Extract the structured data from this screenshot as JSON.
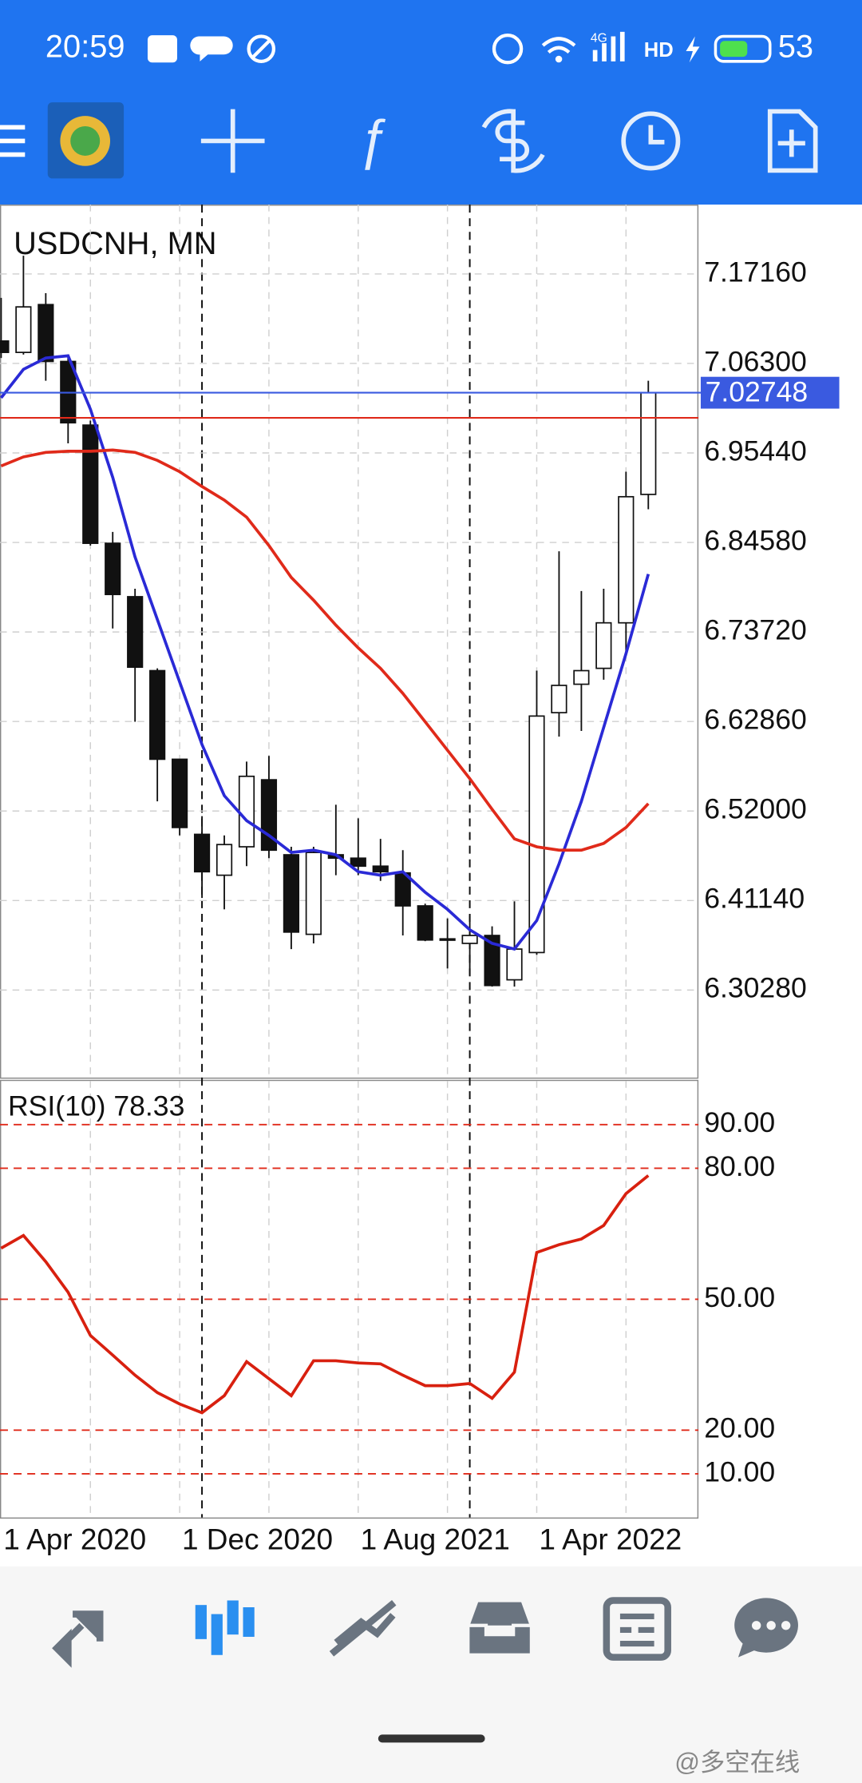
{
  "status_bar": {
    "time": "20:59",
    "network": "4G",
    "hd": "HD",
    "battery": "53"
  },
  "chart_data": [
    {
      "type": "candlestick",
      "title": "USDCNH, MN",
      "categories": [
        "1 Apr 2020",
        null,
        null,
        null,
        null,
        null,
        null,
        null,
        "1 Dec 2020",
        null,
        null,
        null,
        null,
        null,
        null,
        null,
        "1 Aug 2021",
        null,
        null,
        null,
        null,
        null,
        null,
        null,
        "1 Apr 2022",
        null,
        null,
        null,
        null,
        null
      ],
      "open": [
        7.0902,
        7.0764,
        7.1344,
        7.0654,
        6.9882,
        6.8448,
        6.78,
        6.6903,
        6.5828,
        6.4917,
        6.4421,
        6.4766,
        6.5579,
        6.4669,
        6.3704,
        6.4669,
        6.4628,
        6.4531,
        6.4449,
        6.4049,
        6.3649,
        6.3594,
        6.369,
        6.3152,
        6.3483,
        6.6393,
        6.6738,
        6.6931,
        6.7483,
        6.9041
      ],
      "high": [
        7.1426,
        7.1937,
        7.1482,
        7.0737,
        6.9937,
        6.8586,
        6.7896,
        6.6931,
        6.5828,
        6.5138,
        6.4904,
        6.58,
        6.5869,
        6.4766,
        6.4766,
        6.5276,
        6.5111,
        6.4862,
        6.4725,
        6.4076,
        6.3897,
        6.3938,
        6.3801,
        6.4104,
        6.6903,
        6.8351,
        6.7869,
        6.7896,
        6.9317,
        7.042
      ],
      "low": [
        7.0696,
        7.0737,
        7.042,
        6.9661,
        6.842,
        6.7414,
        6.6283,
        6.5317,
        6.4904,
        6.4145,
        6.4007,
        6.4531,
        6.4628,
        6.3525,
        6.3594,
        6.4421,
        6.4421,
        6.4352,
        6.369,
        6.3621,
        6.329,
        6.3207,
        6.307,
        6.307,
        6.3456,
        6.6103,
        6.6172,
        6.6793,
        6.7138,
        6.8861
      ],
      "close": [
        7.0764,
        7.1316,
        7.0654,
        6.991,
        6.8448,
        6.7827,
        6.6945,
        6.5828,
        6.5,
        6.4463,
        6.4793,
        6.5621,
        6.4725,
        6.3731,
        6.4697,
        6.4628,
        6.4531,
        6.4463,
        6.4049,
        6.3635,
        6.3635,
        6.369,
        6.3083,
        6.3525,
        6.6352,
        6.6724,
        6.6903,
        6.7483,
        6.9013,
        7.02748
      ],
      "series": [
        {
          "color": "#2a2ad6",
          "values": [
            7.0213,
            7.0558,
            7.0696,
            7.0723,
            7.0075,
            6.9248,
            6.8282,
            6.7524,
            6.6765,
            6.6007,
            6.5386,
            6.5083,
            6.4904,
            6.4697,
            6.4725,
            6.4669,
            6.4463,
            6.4421,
            6.4463,
            6.4214,
            6.4007,
            6.3759,
            6.3594,
            6.3525,
            6.3871,
            6.4559,
            6.5317,
            6.6214,
            6.711,
            6.8075
          ]
        },
        {
          "color": "#e02a1a",
          "values": [
            6.9386,
            6.9496,
            6.9551,
            6.9565,
            6.9565,
            6.9579,
            6.9551,
            6.9454,
            6.9317,
            6.9137,
            6.8972,
            6.8765,
            6.842,
            6.8034,
            6.7758,
            6.7455,
            6.7179,
            6.6931,
            6.6627,
            6.6283,
            6.5938,
            6.5593,
            6.5221,
            6.4862,
            6.4766,
            6.4725,
            6.4725,
            6.4807,
            6.5,
            6.529
          ]
        }
      ],
      "levels": [
        {
          "value": 7.02748,
          "label": "7.02748",
          "color": "#3a5ae0"
        },
        {
          "value": 6.997,
          "color": "#e02a1a"
        }
      ],
      "ylim": [
        6.1966,
        7.2557
      ],
      "yticks": [
        {
          "value": 7.1716,
          "label": "7.17160"
        },
        {
          "value": 7.063,
          "label": "7.06300"
        },
        {
          "value": 6.9544,
          "label": "6.95440"
        },
        {
          "value": 6.8458,
          "label": "6.84580"
        },
        {
          "value": 6.7372,
          "label": "6.73720"
        },
        {
          "value": 6.6286,
          "label": "6.62860"
        },
        {
          "value": 6.52,
          "label": "6.52000"
        },
        {
          "value": 6.4114,
          "label": "6.41140"
        },
        {
          "value": 6.3028,
          "label": "6.30280"
        }
      ],
      "grid": true
    },
    {
      "type": "line",
      "title": "RSI(10)",
      "color": "#d8200f",
      "values": [
        61.7,
        64.6,
        58.6,
        51.6,
        41.7,
        37.2,
        32.6,
        28.6,
        26.0,
        24.0,
        27.9,
        35.7,
        31.8,
        27.9,
        35.9,
        35.9,
        35.4,
        35.2,
        32.6,
        30.2,
        30.2,
        30.7,
        27.3,
        33.3,
        60.7,
        62.5,
        63.8,
        66.9,
        74.2,
        78.33
      ],
      "ylim": [
        0,
        100
      ],
      "yticks": [
        {
          "value": 90,
          "label": "90.00"
        },
        {
          "value": 80,
          "label": "80.00"
        },
        {
          "value": 50,
          "label": "50.00"
        },
        {
          "value": 20,
          "label": "20.00"
        },
        {
          "value": 10,
          "label": "10.00"
        }
      ],
      "grid": true
    }
  ],
  "watermark": "@多空在线"
}
